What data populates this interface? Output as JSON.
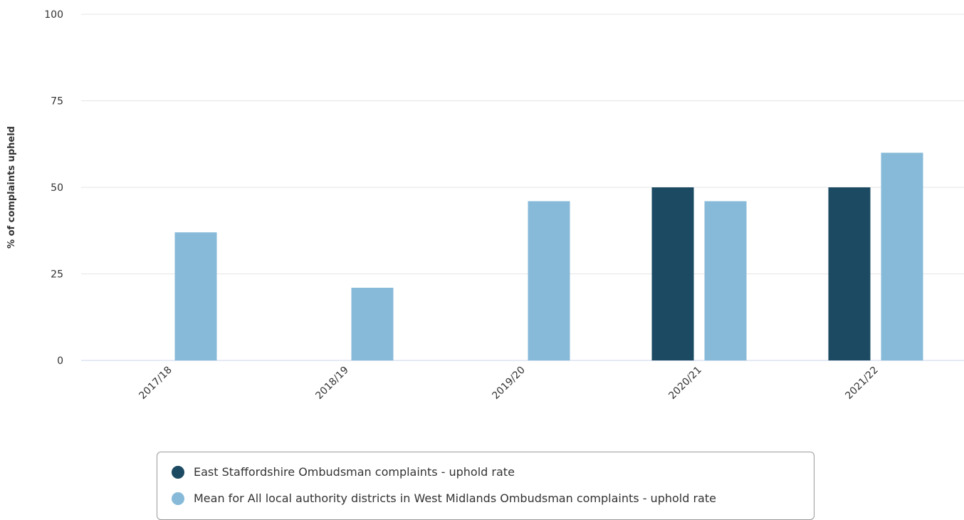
{
  "chart_data": {
    "type": "bar",
    "title": "",
    "xlabel": "",
    "ylabel": "% of complaints upheld",
    "ylim": [
      0,
      100
    ],
    "yticks": [
      0,
      25,
      50,
      75,
      100
    ],
    "grid": true,
    "legend_position": "bottom",
    "categories": [
      "2017/18",
      "2018/19",
      "2019/20",
      "2020/21",
      "2021/22"
    ],
    "series": [
      {
        "name": "East Staffordshire Ombudsman complaints - uphold rate",
        "color": "#1b4a62",
        "values": [
          null,
          null,
          null,
          50,
          50
        ]
      },
      {
        "name": "Mean for All local authority districts in West Midlands Ombudsman complaints - uphold rate",
        "color": "#87bad9",
        "values": [
          37,
          21,
          46,
          46,
          60
        ]
      }
    ]
  }
}
